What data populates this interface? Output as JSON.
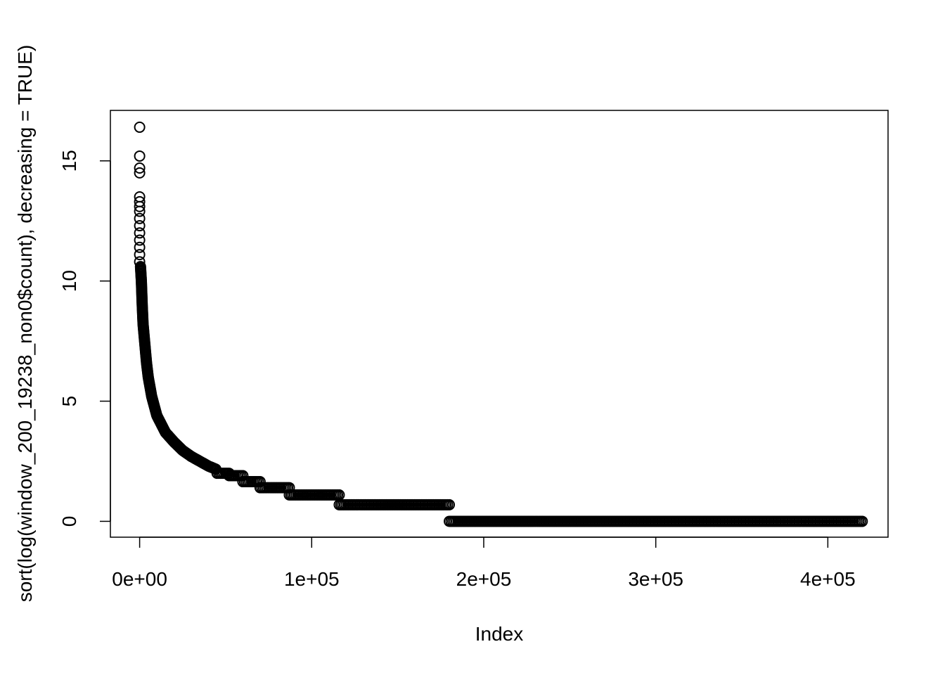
{
  "chart_data": {
    "type": "scatter",
    "title": "",
    "xlabel": "Index",
    "ylabel": "sort(log(window_200_19238_non0$count), decreasing = TRUE)",
    "xlim": [
      -17000,
      435000
    ],
    "ylim": [
      -0.66,
      17.1
    ],
    "x_ticks": [
      0,
      100000,
      200000,
      300000,
      400000
    ],
    "x_tick_labels": [
      "0e+00",
      "1e+05",
      "2e+05",
      "3e+05",
      "4e+05"
    ],
    "y_ticks": [
      0,
      5,
      10,
      15
    ],
    "y_tick_labels": [
      "0",
      "5",
      "10",
      "15"
    ],
    "grid": false,
    "legend": "none",
    "marker": "open-circle",
    "color": "#000000",
    "outliers": [
      {
        "x": 0,
        "y": 16.4
      },
      {
        "x": 0,
        "y": 15.2
      },
      {
        "x": 0,
        "y": 14.7
      },
      {
        "x": 0,
        "y": 14.5
      },
      {
        "x": 0,
        "y": 13.5
      },
      {
        "x": 0,
        "y": 13.3
      },
      {
        "x": 0,
        "y": 13.1
      },
      {
        "x": 0,
        "y": 12.9
      },
      {
        "x": 0,
        "y": 12.6
      },
      {
        "x": 0,
        "y": 12.3
      },
      {
        "x": 0,
        "y": 12.0
      },
      {
        "x": 0,
        "y": 11.7
      },
      {
        "x": 0,
        "y": 11.4
      },
      {
        "x": 0,
        "y": 11.1
      },
      {
        "x": 0,
        "y": 10.8
      }
    ],
    "curve": [
      {
        "x": 500,
        "y": 10.6
      },
      {
        "x": 1000,
        "y": 10.0
      },
      {
        "x": 1500,
        "y": 9.0
      },
      {
        "x": 2000,
        "y": 8.2
      },
      {
        "x": 3000,
        "y": 7.4
      },
      {
        "x": 4000,
        "y": 6.6
      },
      {
        "x": 5000,
        "y": 6.0
      },
      {
        "x": 7000,
        "y": 5.2
      },
      {
        "x": 10000,
        "y": 4.4
      },
      {
        "x": 15000,
        "y": 3.7
      },
      {
        "x": 20000,
        "y": 3.3
      },
      {
        "x": 25000,
        "y": 2.95
      },
      {
        "x": 30000,
        "y": 2.7
      },
      {
        "x": 35000,
        "y": 2.5
      },
      {
        "x": 40000,
        "y": 2.3
      },
      {
        "x": 45000,
        "y": 2.15
      }
    ],
    "plateaus": [
      {
        "x_start": 45000,
        "x_end": 52000,
        "y": 2.0
      },
      {
        "x_start": 52000,
        "x_end": 60000,
        "y": 1.9
      },
      {
        "x_start": 60000,
        "x_end": 70000,
        "y": 1.65
      },
      {
        "x_start": 70000,
        "x_end": 87000,
        "y": 1.4
      },
      {
        "x_start": 87000,
        "x_end": 116000,
        "y": 1.1
      },
      {
        "x_start": 116000,
        "x_end": 180000,
        "y": 0.69
      },
      {
        "x_start": 180000,
        "x_end": 420000,
        "y": 0
      }
    ]
  }
}
